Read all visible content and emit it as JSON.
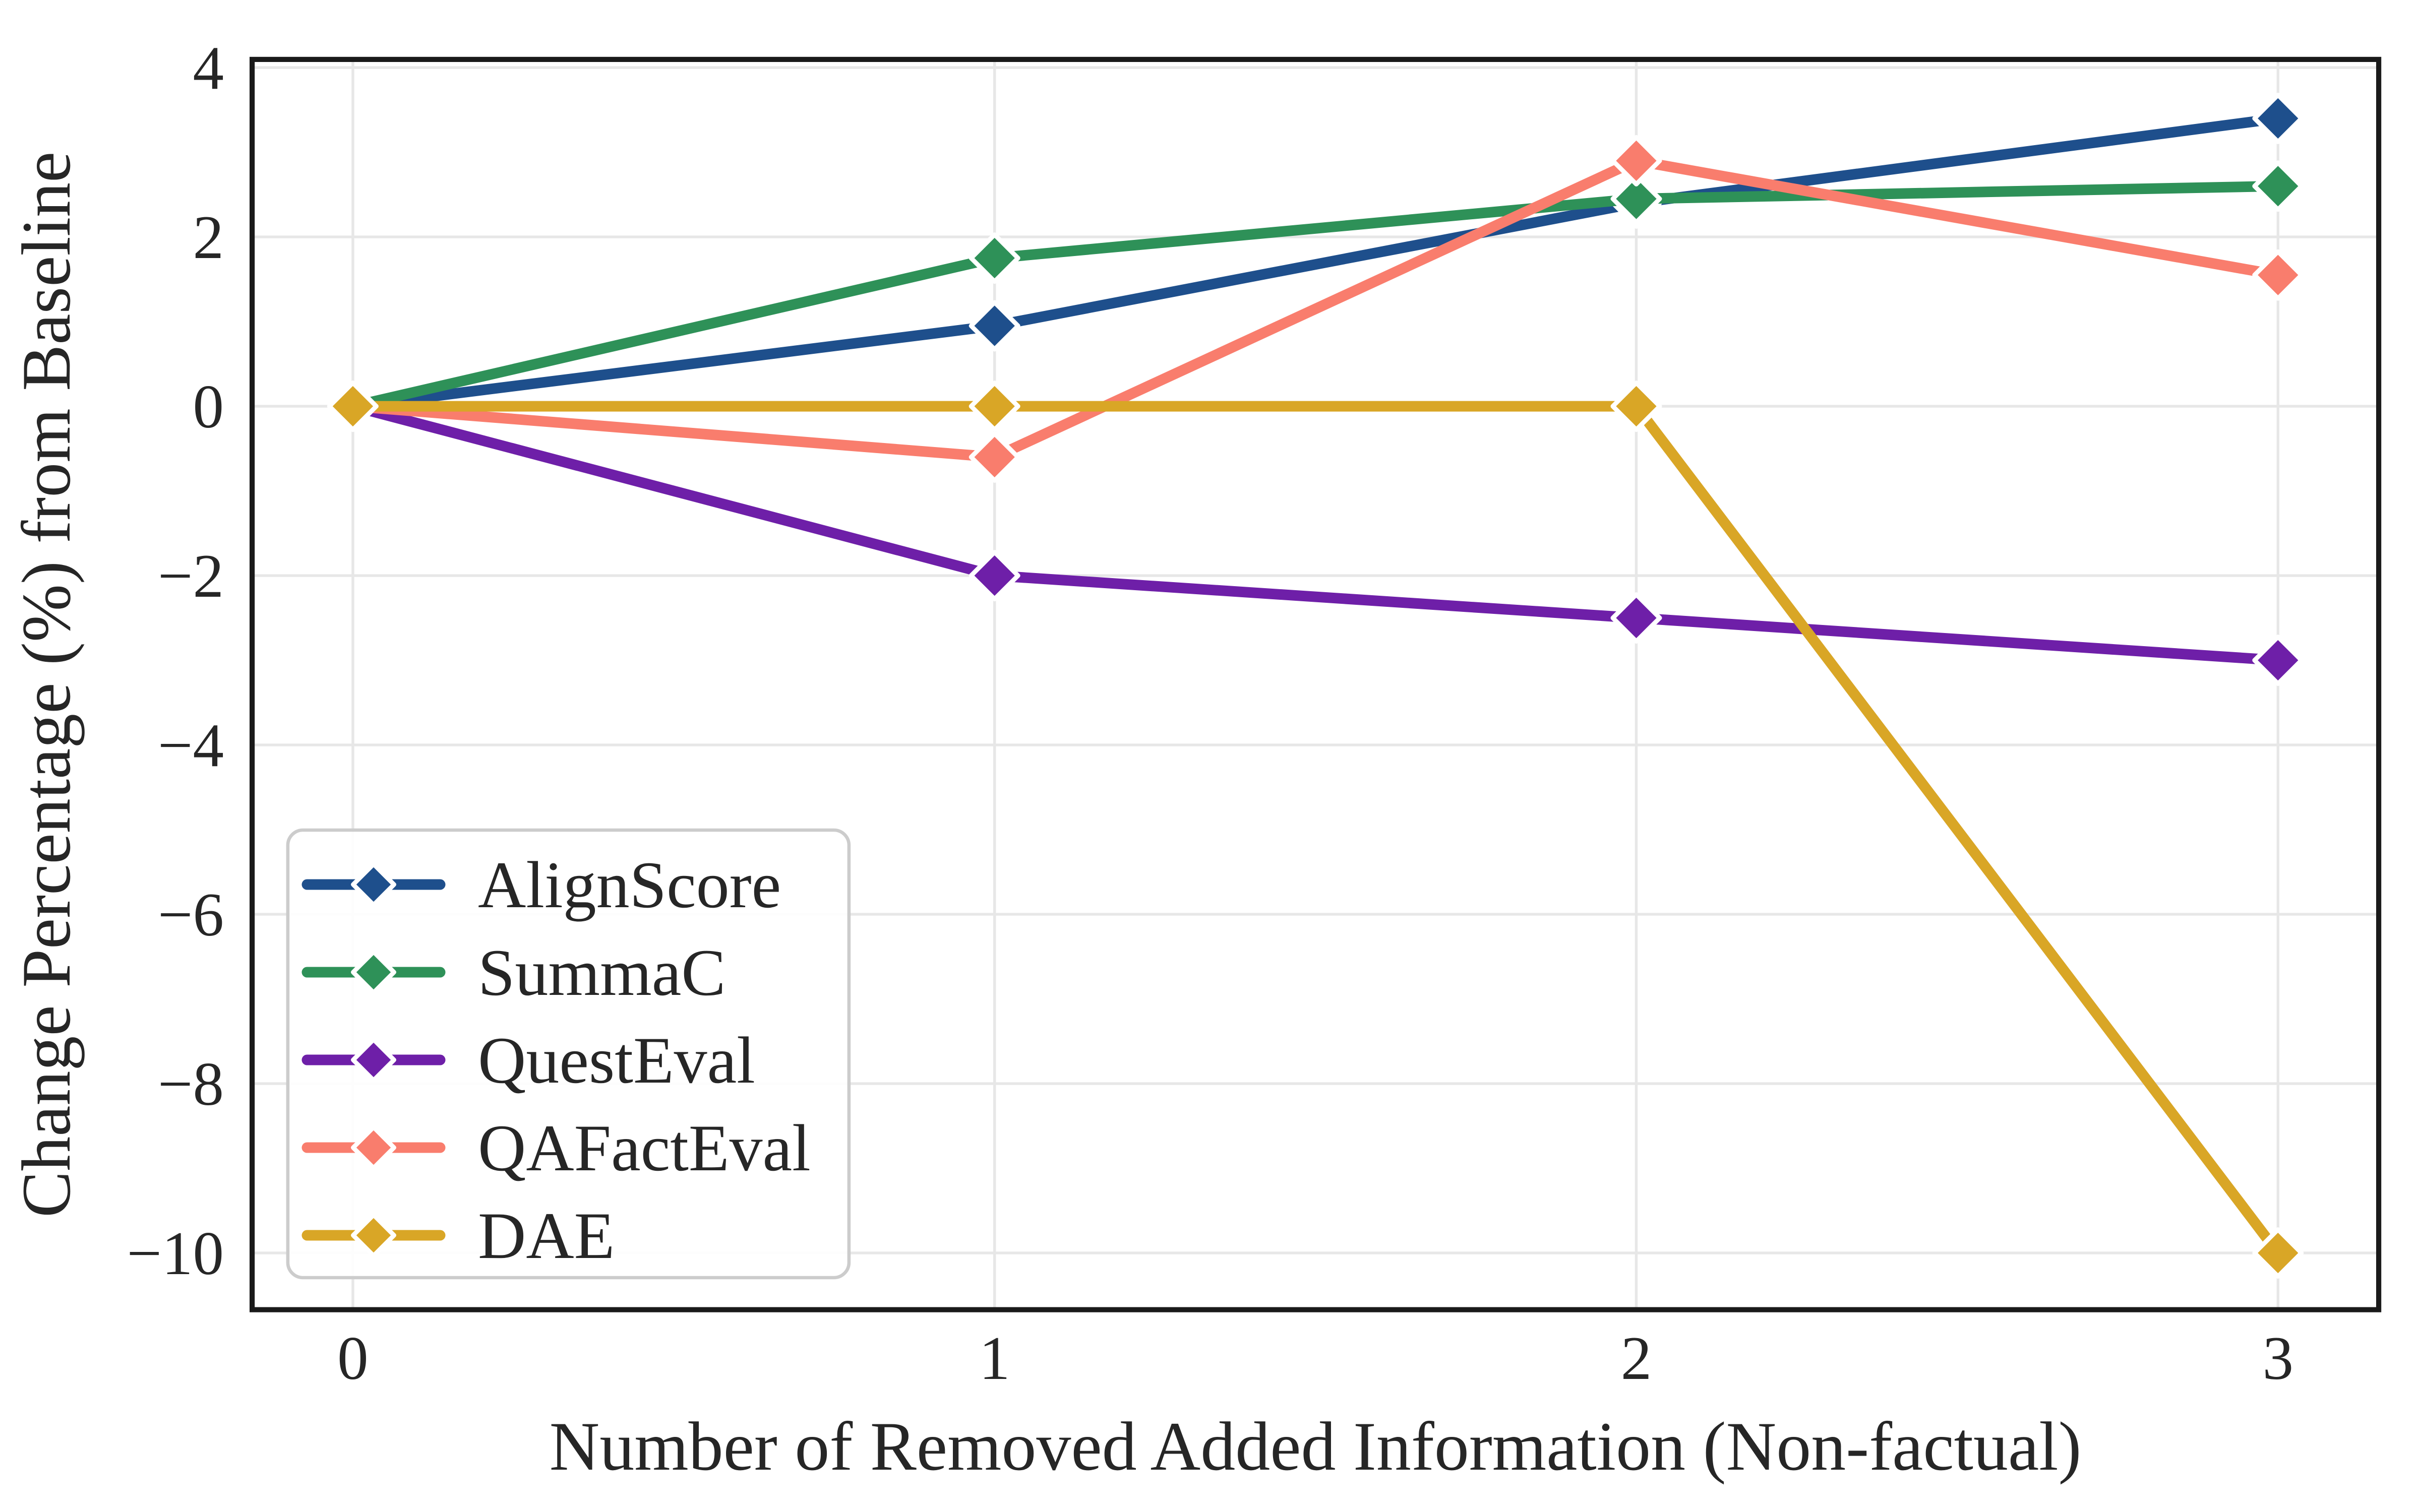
{
  "figure": {
    "background": "#ffffff",
    "text_color": "#262626",
    "grid_color": "#e7e7e7",
    "spine_color": "#1a1a1a",
    "legend_border_color": "#cccccc",
    "legend_background": "#ffffff"
  },
  "chart_data": {
    "type": "line",
    "title": "",
    "xlabel": "Number of Removed Added Information (Non-factual)",
    "ylabel": "Change Percentage (%) from Baseline",
    "x": [
      0,
      1,
      2,
      3
    ],
    "xtick_labels": [
      "0",
      "1",
      "2",
      "3"
    ],
    "yticks": [
      4,
      2,
      0,
      -2,
      -4,
      -6,
      -8,
      -10
    ],
    "ytick_labels": [
      "4",
      "2",
      "0",
      "−2",
      "−4",
      "−6",
      "−8",
      "−10"
    ],
    "xlim": [
      -0.157,
      3.157
    ],
    "ylim": [
      -10.7,
      4.1
    ],
    "grid": true,
    "marker": "diamond",
    "legend_position": "lower left",
    "series": [
      {
        "name": "AlignScore",
        "color": "#1e4f8c",
        "values": [
          0,
          0.95,
          2.4,
          3.4
        ]
      },
      {
        "name": "SummaC",
        "color": "#2e9158",
        "values": [
          0,
          1.75,
          2.45,
          2.6
        ]
      },
      {
        "name": "QuestEval",
        "color": "#6e1fa8",
        "values": [
          0,
          -2.0,
          -2.5,
          -3.0
        ]
      },
      {
        "name": "QAFactEval",
        "color": "#f97d6d",
        "values": [
          0,
          -0.6,
          2.9,
          1.55
        ]
      },
      {
        "name": "DAE",
        "color": "#d9a626",
        "values": [
          0,
          0,
          0,
          -10.0
        ]
      }
    ]
  }
}
